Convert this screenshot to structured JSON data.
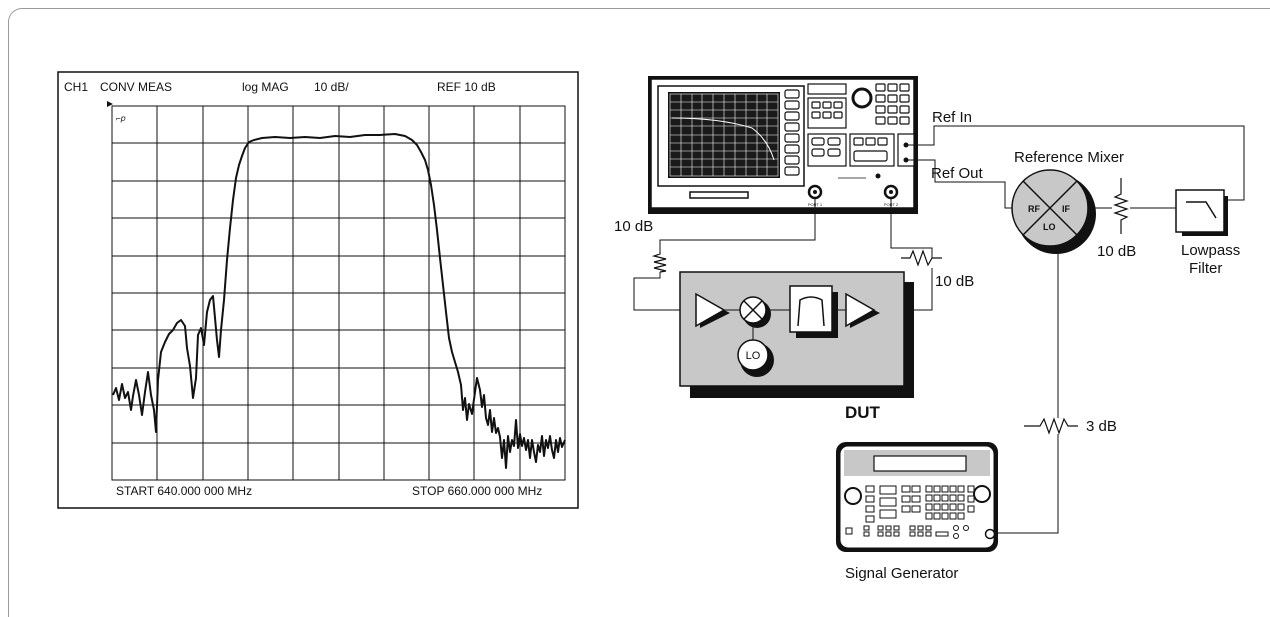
{
  "plot": {
    "header": {
      "channel": "CH1",
      "measurement": "CONV MEAS",
      "format": "log MAG",
      "scale": "10 dB/",
      "reference": "REF 10 dB"
    },
    "start_label": "START  640.000 000 MHz",
    "stop_label": "STOP  660.000 000 MHz"
  },
  "diagram": {
    "ref_in": "Ref In",
    "ref_out": "Ref Out",
    "reference_mixer": "Reference Mixer",
    "mixer_rf": "RF",
    "mixer_if": "IF",
    "mixer_lo": "LO",
    "atten_port1": "10 dB",
    "atten_port2": "10 dB",
    "atten_mixer": "10 dB",
    "atten_generator": "3 dB",
    "lowpass_line1": "Lowpass",
    "lowpass_line2": "Filter",
    "dut_label": "DUT",
    "dut_lo": "LO",
    "port1": "PORT 1",
    "port2": "PORT 2",
    "signal_generator": "Signal Generator"
  }
}
